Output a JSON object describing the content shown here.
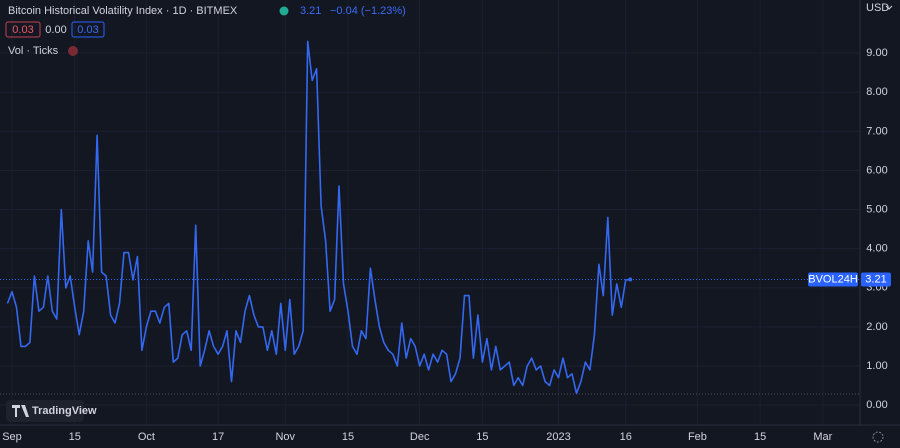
{
  "header": {
    "title": "Bitcoin Historical Volatility Index · 1D · BITMEX",
    "price": "3.21",
    "change": "−0.04 (−1.23%)",
    "open_box": "0.03",
    "mid_value": "0.00",
    "close_box": "0.03",
    "indicator": "Vol · Ticks",
    "currency": "USD",
    "symbol_tag": "BVOL24H",
    "price_tag": "3.21",
    "logo": "TradingView"
  },
  "chart_data": {
    "type": "line",
    "color": "#3468f0",
    "grid": true,
    "xlim": [
      -2.68,
      189.29
    ],
    "ylim": [
      -0.51,
      10.36
    ],
    "xticks": [
      {
        "value": 0,
        "label": "Sep"
      },
      {
        "value": 14,
        "label": "15"
      },
      {
        "value": 30,
        "label": "Oct"
      },
      {
        "value": 46,
        "label": "17"
      },
      {
        "value": 61,
        "label": "Nov"
      },
      {
        "value": 75,
        "label": "15"
      },
      {
        "value": 91,
        "label": "Dec"
      },
      {
        "value": 105,
        "label": "15"
      },
      {
        "value": 122,
        "label": "2023"
      },
      {
        "value": 137,
        "label": "16"
      },
      {
        "value": 153,
        "label": "Feb"
      },
      {
        "value": 167,
        "label": "15"
      },
      {
        "value": 181,
        "label": "Mar"
      }
    ],
    "yticks": [
      {
        "value": 0,
        "label": "0.00"
      },
      {
        "value": 1,
        "label": "1.00"
      },
      {
        "value": 2,
        "label": "2.00"
      },
      {
        "value": 3,
        "label": "3.00"
      },
      {
        "value": 4,
        "label": "4.00"
      },
      {
        "value": 5,
        "label": "5.00"
      },
      {
        "value": 6,
        "label": "6.00"
      },
      {
        "value": 7,
        "label": "7.00"
      },
      {
        "value": 8,
        "label": "8.00"
      },
      {
        "value": 9,
        "label": "9.00"
      }
    ],
    "x": [
      -1,
      0,
      1,
      2,
      3,
      4,
      5,
      6,
      7,
      8,
      9,
      10,
      11,
      12,
      13,
      14,
      15,
      16,
      17,
      18,
      19,
      20,
      21,
      22,
      23,
      24,
      25,
      26,
      27,
      28,
      29,
      30,
      31,
      32,
      33,
      34,
      35,
      36,
      37,
      38,
      39,
      40,
      41,
      42,
      43,
      44,
      45,
      46,
      47,
      48,
      49,
      50,
      51,
      52,
      53,
      54,
      55,
      56,
      57,
      58,
      59,
      60,
      61,
      62,
      63,
      64,
      65,
      66,
      67,
      68,
      69,
      70,
      71,
      72,
      73,
      74,
      75,
      76,
      77,
      78,
      79,
      80,
      81,
      82,
      83,
      84,
      85,
      86,
      87,
      88,
      89,
      90,
      91,
      92,
      93,
      94,
      95,
      96,
      97,
      98,
      99,
      100,
      101,
      102,
      103,
      104,
      105,
      106,
      107,
      108,
      109,
      110,
      111,
      112,
      113,
      114,
      115,
      116,
      117,
      118,
      119,
      120,
      121,
      122,
      123,
      124,
      125,
      126,
      127,
      128,
      129,
      130,
      131,
      132,
      133,
      134,
      135,
      136,
      137,
      138
    ],
    "values": [
      2.6,
      2.9,
      2.5,
      1.5,
      1.5,
      1.6,
      3.3,
      2.4,
      2.5,
      3.3,
      2.4,
      2.2,
      5.0,
      3.0,
      3.3,
      2.5,
      1.8,
      2.4,
      4.2,
      3.4,
      6.9,
      3.4,
      3.3,
      2.3,
      2.1,
      2.6,
      3.9,
      3.9,
      3.2,
      3.8,
      1.4,
      2.0,
      2.4,
      2.4,
      2.1,
      2.5,
      2.6,
      1.1,
      1.2,
      1.8,
      1.9,
      1.4,
      4.6,
      1.0,
      1.4,
      1.9,
      1.5,
      1.3,
      1.5,
      1.9,
      0.6,
      1.9,
      1.6,
      2.4,
      2.8,
      2.3,
      2.0,
      2.0,
      1.4,
      1.9,
      1.3,
      2.6,
      1.4,
      2.7,
      1.3,
      1.5,
      1.9,
      9.3,
      8.3,
      8.6,
      5.1,
      4.2,
      2.4,
      2.7,
      5.6,
      3.1,
      2.4,
      1.5,
      1.3,
      1.9,
      1.7,
      3.5,
      2.7,
      2.0,
      1.6,
      1.4,
      1.3,
      1.0,
      2.1,
      1.2,
      1.7,
      1.5,
      1.0,
      1.3,
      0.9,
      1.3,
      1.1,
      1.4,
      1.3,
      0.6,
      0.8,
      1.2,
      2.8,
      2.8,
      1.2,
      2.3,
      1.1,
      1.7,
      0.9,
      1.5,
      0.9,
      1.0,
      1.1,
      0.5,
      0.7,
      0.5,
      1.0,
      1.2,
      0.9,
      1.0,
      0.6,
      0.5,
      0.9,
      0.7,
      1.2,
      0.7,
      0.8,
      0.3,
      0.6,
      1.1,
      0.9,
      1.8,
      3.6,
      2.8,
      4.8,
      2.3,
      3.1,
      2.5,
      3.2,
      3.21
    ]
  }
}
